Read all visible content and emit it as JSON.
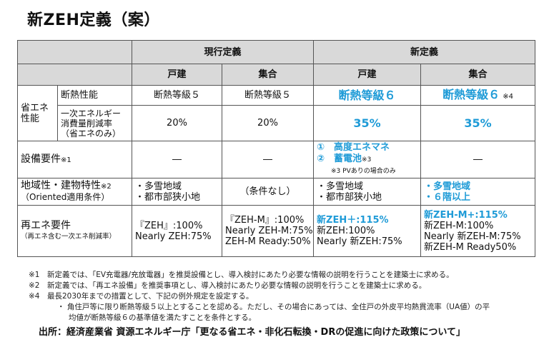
{
  "title": "新ZEH定義（案）",
  "table": {
    "group_current": "現行定義",
    "group_new": "新定義",
    "col_detached": "戸建",
    "col_collective": "集合",
    "row_energy_saving": "省エネ\n性能",
    "row_insulation": "断熱性能",
    "insulation": {
      "current_detached": "断熱等級５",
      "current_collective": "断熱等級５",
      "new_detached": "断熱等級６",
      "new_collective": "断熱等級６",
      "new_collective_note": "※4"
    },
    "row_reduction": "一次エネルギー\n消費量削減率\n（省エネのみ）",
    "reduction": {
      "current_detached": "20%",
      "current_collective": "20%",
      "new_detached": "35%",
      "new_collective": "35%"
    },
    "row_equipment": "設備要件",
    "row_equipment_note": "※1",
    "equipment": {
      "current_detached": "―",
      "current_collective": "―",
      "new_detached_1": "①　高度エネマネ",
      "new_detached_2": "②　蓄電池",
      "new_detached_2_note": "※3",
      "new_detached_footnote": "※3 PVありの場合のみ",
      "new_collective": "―"
    },
    "row_region": "地域性・建物特性",
    "row_region_note": "※2",
    "row_region_sub": "（Oriented適用条件）",
    "region": {
      "current_detached_1": "・多雪地域",
      "current_detached_2": "・都市部狭小地",
      "current_collective": "（条件なし）",
      "new_detached_1": "・多雪地域",
      "new_detached_2": "・都市部狭小地",
      "new_collective_1": "・多雪地域",
      "new_collective_2": "・６階以上"
    },
    "row_renewable": "再エネ要件",
    "row_renewable_sub": "（再エネ含む一次エネ削減率）",
    "renewable": {
      "current_detached_1": "『ZEH』:100%",
      "current_detached_2": "Nearly ZEH:75%",
      "current_collective_1": "『ZEH-M』:100%",
      "current_collective_2": "Nearly ZEH-M:75%",
      "current_collective_3": "ZEH-M Ready:50%",
      "new_detached_1": "新ZEH＋:115%",
      "new_detached_2": "新ZEH:100%",
      "new_detached_3": "Nearly 新ZEH:75%",
      "new_collective_1": "新ZEH-M+:115%",
      "new_collective_2": "新ZEH-M:100%",
      "new_collective_3": "Nearly 新ZEH-M:75%",
      "new_collective_4": "新ZEH-M Ready50%"
    }
  },
  "notes": {
    "n1": "※1　新定義では、「EV充電器/充放電器」を推奨設備とし、導入検討にあたり必要な情報の説明を行うことを建築士に求める。",
    "n2": "※2　新定義では、「再エネ設備」を推奨事項とし、導入検討にあたり必要な情報の説明を行うことを建築士に求める。",
    "n4": "※4　最長2030年までの措置として、下記の例外規定を設定する。",
    "n4_bullet_1": "・ 角住戸等に限り断熱等級５以上とすることを認める。ただし、その場合にあっては、全住戸の外皮平均熱貫流率（UA値）の平",
    "n4_bullet_2": "均値が断熱等級６の基準値を満たすことを条件とする。"
  },
  "source": "出所：経済産業省 資源エネルギー庁「更なる省エネ・非化石転換・DRの促進に向けた政策について」",
  "colors": {
    "accent_blue": "#1f9bd7",
    "header_gray": "#d9d9d9"
  }
}
